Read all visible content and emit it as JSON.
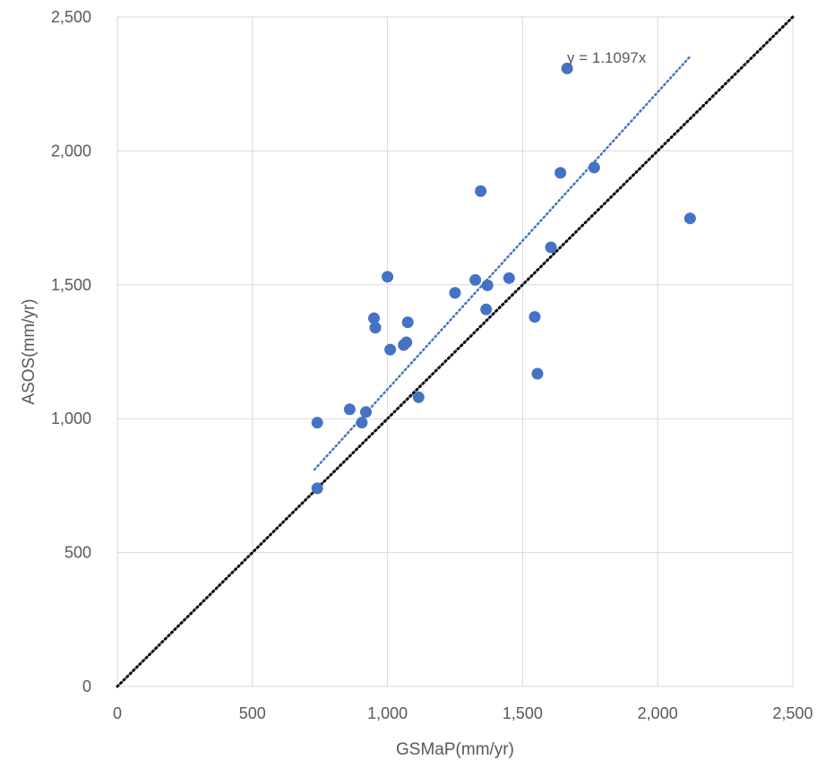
{
  "chart_data": {
    "type": "scatter",
    "xlabel": "GSMaP(mm/yr)",
    "ylabel": "ASOS(mm/yr)",
    "xlim": [
      0,
      2500
    ],
    "ylim": [
      0,
      2500
    ],
    "x_ticks": [
      "0",
      "500",
      "1,000",
      "1,500",
      "2,000",
      "2,500"
    ],
    "y_ticks": [
      "0",
      "500",
      "1,000",
      "1,500",
      "2,000",
      "2,500"
    ],
    "tick_values": [
      0,
      500,
      1000,
      1500,
      2000,
      2500
    ],
    "grid": true,
    "legend": "none",
    "series": [
      {
        "marker_color": "#4472C4",
        "points": [
          {
            "x": 740,
            "y": 985
          },
          {
            "x": 740,
            "y": 740
          },
          {
            "x": 860,
            "y": 1035
          },
          {
            "x": 905,
            "y": 985
          },
          {
            "x": 920,
            "y": 1025
          },
          {
            "x": 950,
            "y": 1375
          },
          {
            "x": 955,
            "y": 1340
          },
          {
            "x": 1000,
            "y": 1530
          },
          {
            "x": 1010,
            "y": 1258
          },
          {
            "x": 1060,
            "y": 1275
          },
          {
            "x": 1070,
            "y": 1285
          },
          {
            "x": 1075,
            "y": 1360
          },
          {
            "x": 1115,
            "y": 1080
          },
          {
            "x": 1250,
            "y": 1470
          },
          {
            "x": 1325,
            "y": 1518
          },
          {
            "x": 1345,
            "y": 1850
          },
          {
            "x": 1365,
            "y": 1408
          },
          {
            "x": 1370,
            "y": 1498
          },
          {
            "x": 1450,
            "y": 1525
          },
          {
            "x": 1545,
            "y": 1380
          },
          {
            "x": 1555,
            "y": 1168
          },
          {
            "x": 1605,
            "y": 1640
          },
          {
            "x": 1640,
            "y": 1918
          },
          {
            "x": 1665,
            "y": 2308
          },
          {
            "x": 1765,
            "y": 1938
          },
          {
            "x": 2120,
            "y": 1748
          }
        ]
      }
    ],
    "trendline": {
      "label": "y = 1.1097x",
      "slope": 1.1097,
      "x_range": [
        730,
        2120
      ],
      "color": "#4472C4",
      "style": "dotted"
    },
    "reference_line": {
      "slope": 1,
      "x_range": [
        0,
        2500
      ],
      "color": "#000000",
      "style": "dotted"
    }
  }
}
